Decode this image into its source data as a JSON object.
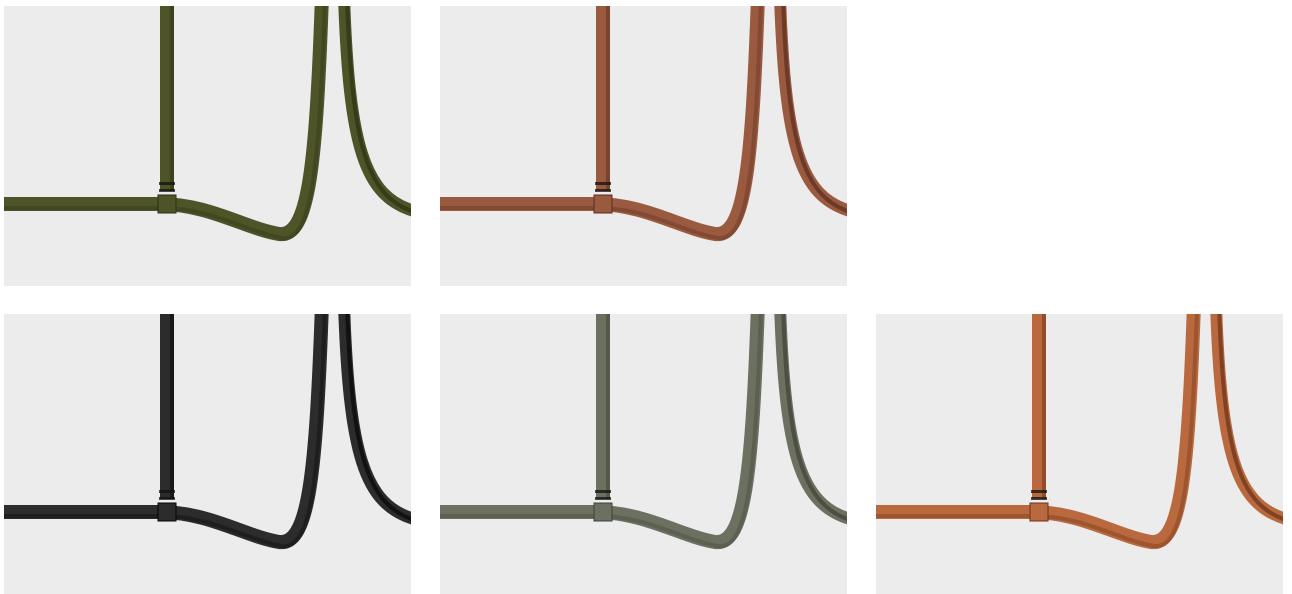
{
  "tiles": [
    {
      "variant": "olive",
      "color": "#4e5428",
      "dark": "#2c3014",
      "empty": false
    },
    {
      "variant": "copper",
      "color": "#9a5a40",
      "dark": "#5a2c1c",
      "empty": false
    },
    {
      "variant": "none",
      "color": "",
      "dark": "",
      "empty": true
    },
    {
      "variant": "black",
      "color": "#2c2c2c",
      "dark": "#050505",
      "empty": false
    },
    {
      "variant": "sage",
      "color": "#6b7060",
      "dark": "#3e4236",
      "empty": false
    },
    {
      "variant": "orange",
      "color": "#b9693d",
      "dark": "#6a3218",
      "empty": false
    }
  ]
}
